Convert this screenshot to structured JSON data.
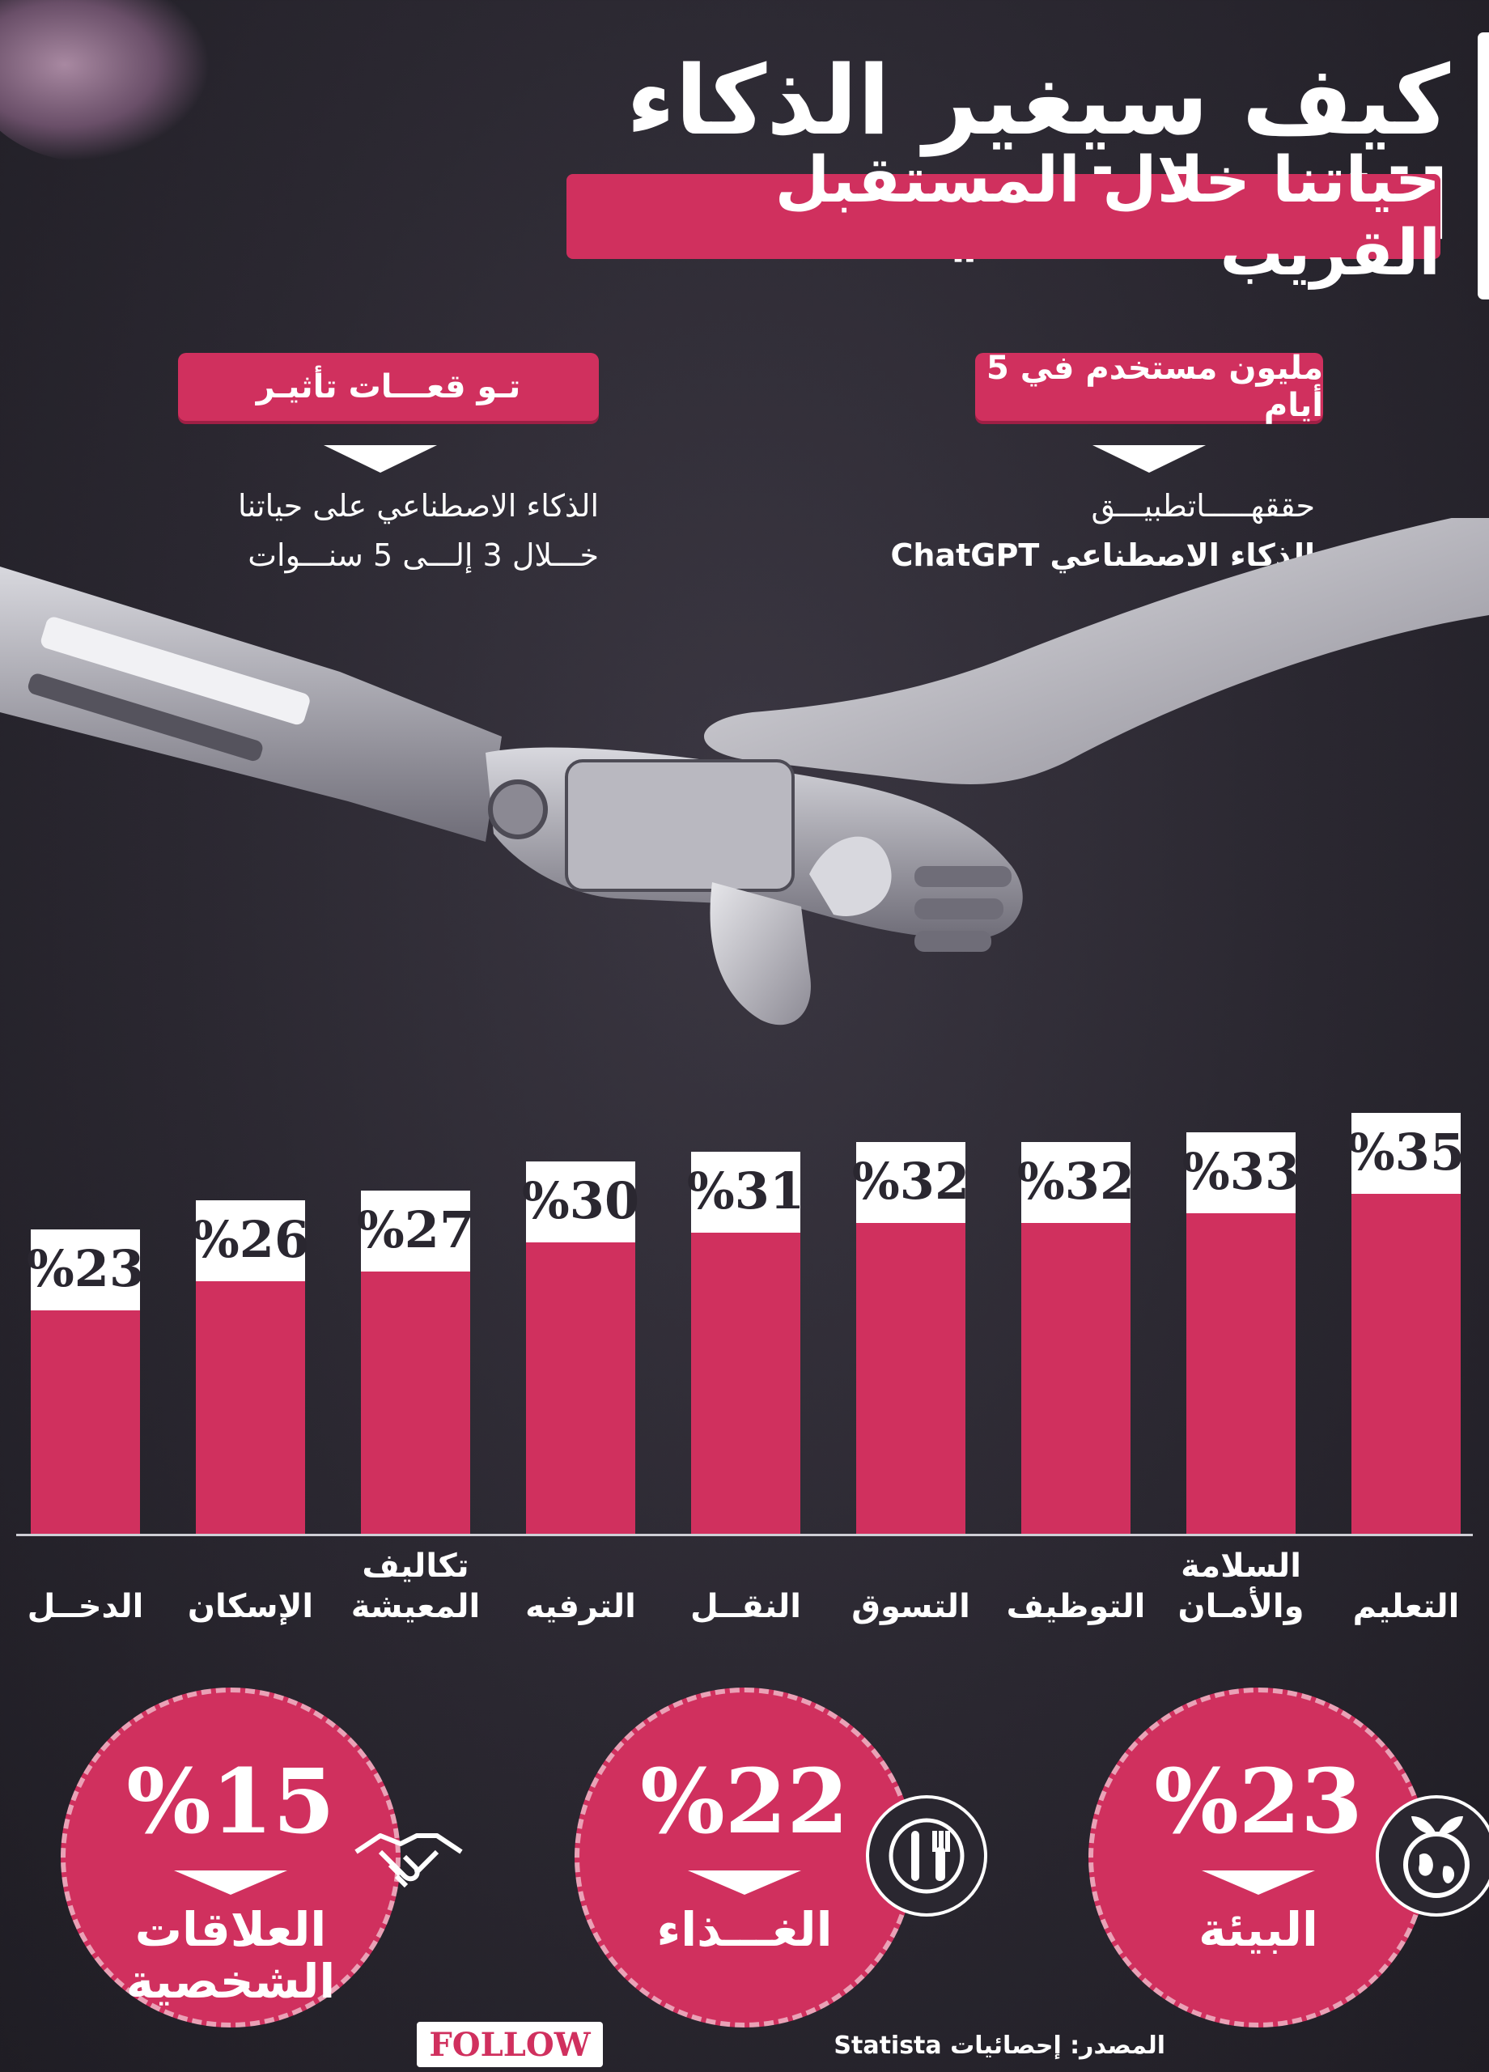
{
  "header": {
    "title": "كيف سيغير الذكاء الاصطناعي",
    "subtitle": "حياتنا خلال المستقبل القريب"
  },
  "callouts": {
    "right": {
      "badge": "مليون مستخدم في 5 أيام",
      "line1": "حققهـــــاتطبيـــق",
      "line2": "الذكاء الاصطناعي ChatGPT"
    },
    "left": {
      "badge": "تـو قعـــات تأثيـر",
      "line1": "الذكاء الاصطناعي على حياتنا",
      "line2": "خـــلال 3 إلـــى 5 سنـــوات"
    }
  },
  "chart_data": {
    "type": "bar",
    "categories": [
      "التعليم",
      "السلامة والأمان",
      "التوظيف",
      "التسوق",
      "النقــل",
      "الترفيه",
      "تكاليف المعيشة",
      "الإسكان",
      "الدخــل"
    ],
    "category_lines": [
      [
        "التعليم"
      ],
      [
        "السلامة",
        "والأمـان"
      ],
      [
        "التوظيف"
      ],
      [
        "التسوق"
      ],
      [
        "النقــل"
      ],
      [
        "الترفيه"
      ],
      [
        "تكاليف",
        "المعيشة"
      ],
      [
        "الإسكان"
      ],
      [
        "الدخــل"
      ]
    ],
    "values": [
      35,
      33,
      32,
      32,
      31,
      30,
      27,
      26,
      23
    ],
    "value_labels": [
      "%35",
      "%33",
      "%32",
      "%32",
      "%31",
      "%30",
      "%27",
      "%26",
      "%23"
    ],
    "ylim": [
      0,
      35
    ],
    "color": "#d0305e",
    "label_box_color": "#ffffff"
  },
  "circles": [
    {
      "value": "%23",
      "label_lines": [
        "البيئة"
      ],
      "icon": "earth-plant-icon"
    },
    {
      "value": "%22",
      "label_lines": [
        "الغـــذاء"
      ],
      "icon": "plate-cutlery-icon"
    },
    {
      "value": "%15",
      "label_lines": [
        "العلاقات",
        "الشخصية"
      ],
      "icon": "handshake-icon"
    }
  ],
  "footer": {
    "brand": "FOLLOW",
    "source": "المصدر: إحصائيات Statista"
  },
  "colors": {
    "accent": "#d0305e",
    "background": "#2a2730",
    "text": "#ffffff"
  }
}
